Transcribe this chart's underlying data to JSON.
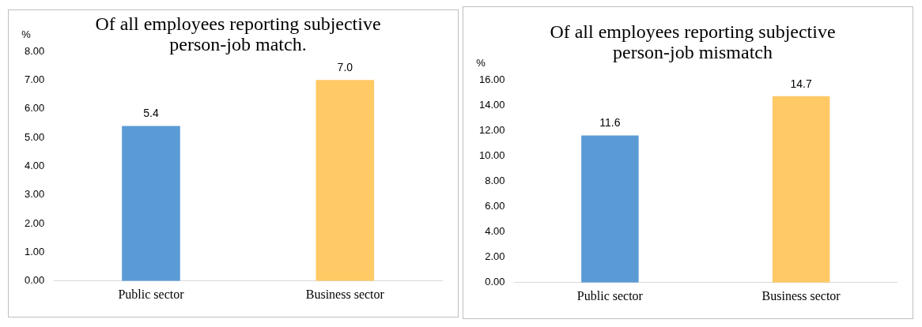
{
  "chart_data": [
    {
      "type": "bar",
      "title": "Of all employees reporting subjective person-job match.",
      "ylabel": "%",
      "categories": [
        "Public sector",
        "Business sector"
      ],
      "colors": [
        "#5b9bd5",
        "#ffc966"
      ],
      "values": [
        5.4,
        7.0
      ],
      "value_labels": [
        "5.4",
        "7.0"
      ],
      "ylim": [
        0,
        8
      ],
      "yticks": [
        {
          "value": 0,
          "label": "0.00"
        },
        {
          "value": 1,
          "label": "1.00"
        },
        {
          "value": 2,
          "label": "2.00"
        },
        {
          "value": 3,
          "label": "3.00"
        },
        {
          "value": 4,
          "label": "4.00"
        },
        {
          "value": 5,
          "label": "5.00"
        },
        {
          "value": 6,
          "label": "6.00"
        },
        {
          "value": 7,
          "label": "7.00"
        },
        {
          "value": 8,
          "label": "8.00"
        }
      ],
      "grid": false,
      "legend": false
    },
    {
      "type": "bar",
      "title": "Of all employees reporting subjective person-job mismatch",
      "ylabel": "%",
      "categories": [
        "Public sector",
        "Business sector"
      ],
      "colors": [
        "#5b9bd5",
        "#ffc966"
      ],
      "values": [
        11.6,
        14.7
      ],
      "value_labels": [
        "11.6",
        "14.7"
      ],
      "ylim": [
        0,
        16
      ],
      "yticks": [
        {
          "value": 0,
          "label": "0.00"
        },
        {
          "value": 2,
          "label": "2.00"
        },
        {
          "value": 4,
          "label": "4.00"
        },
        {
          "value": 6,
          "label": "6.00"
        },
        {
          "value": 8,
          "label": "8.00"
        },
        {
          "value": 10,
          "label": "10.00"
        },
        {
          "value": 12,
          "label": "12.00"
        },
        {
          "value": 14,
          "label": "14.00"
        },
        {
          "value": 16,
          "label": "16.00"
        }
      ],
      "grid": false,
      "legend": false
    }
  ]
}
